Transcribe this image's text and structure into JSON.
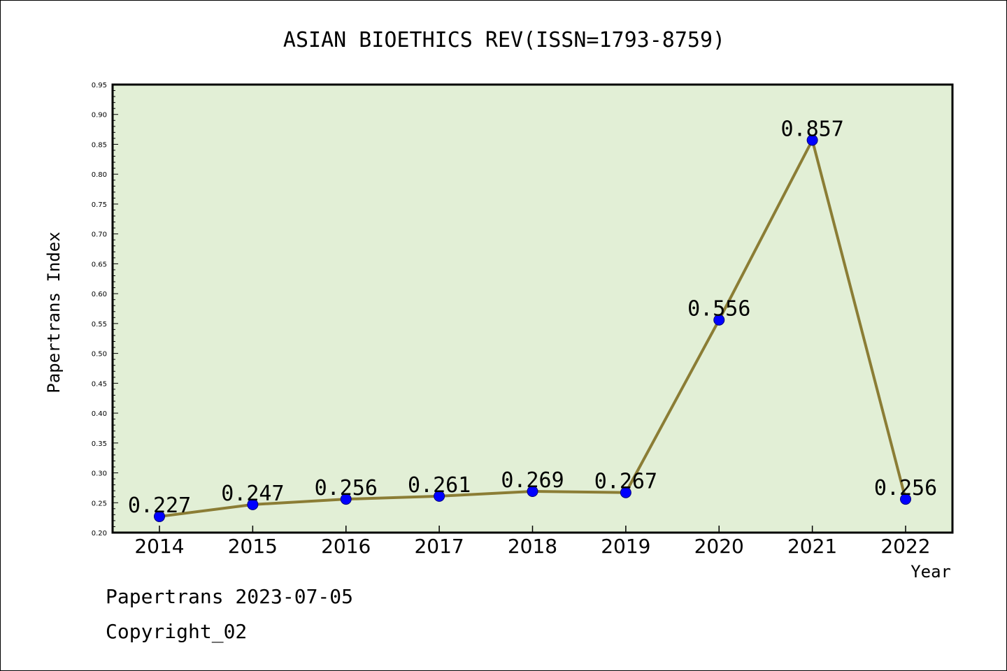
{
  "chart_data": {
    "type": "line",
    "title": "ASIAN BIOETHICS REV(ISSN=1793-8759)",
    "xlabel": "Year",
    "ylabel": "Papertrans Index",
    "categories": [
      "2014",
      "2015",
      "2016",
      "2017",
      "2018",
      "2019",
      "2020",
      "2021",
      "2022"
    ],
    "series": [
      {
        "values": [
          0.227,
          0.247,
          0.256,
          0.261,
          0.269,
          0.267,
          0.556,
          0.857,
          0.256
        ],
        "labels": [
          "0.227",
          "0.247",
          "0.256",
          "0.261",
          "0.269",
          "0.267",
          "0.556",
          "0.857",
          "0.256"
        ]
      }
    ],
    "ylim": [
      0.2,
      0.95
    ],
    "yticks": [
      "0.20",
      "0.25",
      "0.30",
      "0.35",
      "0.40",
      "0.45",
      "0.50",
      "0.55",
      "0.60",
      "0.65",
      "0.70",
      "0.75",
      "0.80",
      "0.85",
      "0.90",
      "0.95"
    ],
    "grid": false,
    "colors": {
      "plot_bg": "#e2efd6",
      "line": "#8b7d35",
      "marker": "#0000ff"
    }
  },
  "footer": {
    "line1": "Papertrans 2023-07-05",
    "line2": "Copyright_02"
  }
}
